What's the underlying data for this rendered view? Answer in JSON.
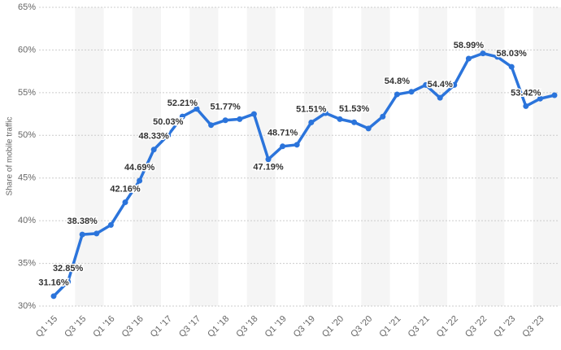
{
  "chart_data": {
    "type": "line",
    "y_label": "Share of mobile traffic",
    "categories": [
      "Q1 '15",
      null,
      "Q3 '15",
      null,
      "Q1 '16",
      null,
      "Q3 '16",
      null,
      "Q1 '17",
      null,
      "Q3 '17",
      null,
      "Q1 '18",
      null,
      "Q3 '18",
      null,
      "Q1 '19",
      null,
      "Q3 '19",
      null,
      "Q1 '20",
      null,
      "Q3 '20",
      null,
      "Q1 '21",
      null,
      "Q3 '21",
      null,
      "Q1 '22",
      null,
      "Q3 '22",
      null,
      "Q1 '23",
      null,
      "Q3 '23",
      null
    ],
    "series": [
      {
        "color": "#2b74db",
        "values": [
          31.16,
          32.85,
          38.38,
          38.5,
          39.5,
          42.16,
          44.69,
          48.33,
          50.03,
          52.21,
          53.1,
          51.2,
          51.77,
          51.9,
          52.5,
          47.19,
          48.71,
          48.9,
          51.51,
          52.6,
          51.9,
          51.53,
          50.8,
          52.2,
          54.8,
          55.1,
          55.9,
          54.4,
          55.9,
          58.99,
          59.6,
          59.2,
          58.03,
          53.42,
          54.3,
          54.7
        ],
        "value_labels": [
          "31.16%",
          "32.85%",
          "38.38%",
          null,
          null,
          "42.16%",
          "44.69%",
          "48.33%",
          "50.03%",
          "52.21%",
          null,
          null,
          "51.77%",
          null,
          null,
          "47.19%",
          "48.71%",
          null,
          "51.51%",
          null,
          null,
          "51.53%",
          null,
          null,
          "54.8%",
          null,
          null,
          "54.4%",
          null,
          "58.99%",
          null,
          null,
          "58.03%",
          "53.42%",
          null,
          null
        ]
      }
    ],
    "ylim": [
      30,
      65
    ],
    "yticks": [
      {
        "value": 30,
        "label": "30%"
      },
      {
        "value": 35,
        "label": "35%"
      },
      {
        "value": 40,
        "label": "40%"
      },
      {
        "value": 45,
        "label": "45%"
      },
      {
        "value": 50,
        "label": "50%"
      },
      {
        "value": 55,
        "label": "55%"
      },
      {
        "value": 60,
        "label": "60%"
      },
      {
        "value": 65,
        "label": "65%"
      }
    ],
    "grid": true
  }
}
